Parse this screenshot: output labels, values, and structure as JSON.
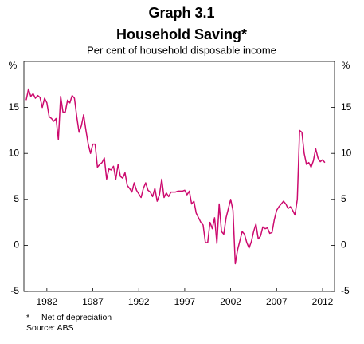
{
  "chart_data": {
    "type": "line",
    "title": "Graph 3.1",
    "subtitle": "Household Saving*",
    "subtitle2": "Per cent of household disposable income",
    "ylabel": "%",
    "y2label": "%",
    "note": "Net of depreciation",
    "note_marker": "*",
    "source": "Source: ABS",
    "x": [
      1979.75,
      1980,
      1980.25,
      1980.5,
      1980.75,
      1981,
      1981.25,
      1981.5,
      1981.75,
      1982,
      1982.25,
      1982.5,
      1982.75,
      1983,
      1983.25,
      1983.5,
      1983.75,
      1984,
      1984.25,
      1984.5,
      1984.75,
      1985,
      1985.25,
      1985.5,
      1985.75,
      1986,
      1986.25,
      1986.5,
      1986.75,
      1987,
      1987.25,
      1987.5,
      1987.75,
      1988,
      1988.25,
      1988.5,
      1988.75,
      1989,
      1989.25,
      1989.5,
      1989.75,
      1990,
      1990.25,
      1990.5,
      1990.75,
      1991,
      1991.25,
      1991.5,
      1991.75,
      1992,
      1992.25,
      1992.5,
      1992.75,
      1993,
      1993.25,
      1993.5,
      1993.75,
      1994,
      1994.25,
      1994.5,
      1994.75,
      1995,
      1995.25,
      1995.5,
      1995.75,
      1996,
      1996.25,
      1996.5,
      1996.75,
      1997,
      1997.25,
      1997.5,
      1997.75,
      1998,
      1998.25,
      1998.5,
      1998.75,
      1999,
      1999.25,
      1999.5,
      1999.75,
      2000,
      2000.25,
      2000.5,
      2000.75,
      2001,
      2001.25,
      2001.5,
      2001.75,
      2002,
      2002.25,
      2002.5,
      2002.75,
      2003,
      2003.25,
      2003.5,
      2003.75,
      2004,
      2004.25,
      2004.5,
      2004.75,
      2005,
      2005.25,
      2005.5,
      2005.75,
      2006,
      2006.25,
      2006.5,
      2006.75,
      2007,
      2007.25,
      2007.5,
      2007.75,
      2008,
      2008.25,
      2008.5,
      2008.75,
      2009,
      2009.25,
      2009.5,
      2009.75,
      2010,
      2010.25,
      2010.5,
      2010.75,
      2011,
      2011.25,
      2011.5,
      2011.75,
      2012,
      2012.25
    ],
    "series": [
      {
        "name": "Household Saving",
        "color": "#cc0a6e",
        "values": [
          15.8,
          17,
          16.2,
          16.5,
          16,
          16.3,
          16.1,
          15,
          16,
          15.5,
          14,
          13.8,
          13.5,
          13.8,
          11.5,
          16.2,
          14.5,
          14.5,
          15.8,
          15.5,
          16.3,
          16,
          14,
          12.3,
          13,
          14.2,
          12.5,
          11,
          10,
          11,
          11,
          8.5,
          8.8,
          9,
          9.5,
          7.2,
          8.3,
          8.2,
          8.6,
          7.2,
          8.8,
          7.5,
          7.3,
          7.9,
          6.5,
          6.2,
          5.8,
          6.8,
          6,
          5.6,
          5.2,
          6.2,
          6.8,
          6,
          5.8,
          5.3,
          6.2,
          4.8,
          5.5,
          7.2,
          5.2,
          5.7,
          5.3,
          5.8,
          5.8,
          5.8,
          5.9,
          5.9,
          5.9,
          6,
          5.5,
          5.9,
          4.5,
          4.8,
          3.5,
          3,
          2.5,
          2.2,
          0.3,
          0.3,
          2.5,
          1.8,
          3,
          0.2,
          4.5,
          1.5,
          1.2,
          3,
          4,
          5,
          3.8,
          -2,
          -0.5,
          0.5,
          1.5,
          1.2,
          0.3,
          -0.3,
          0.4,
          1.5,
          2.3,
          0.7,
          1,
          2,
          1.8,
          1.9,
          1.3,
          1.4,
          2.8,
          3.8,
          4.2,
          4.5,
          4.8,
          4.5,
          4,
          4.2,
          3.8,
          3.3,
          5,
          12.5,
          12.3,
          10,
          8.8,
          9,
          8.5,
          9.2,
          10.5,
          9.5,
          9.1,
          9.3,
          9
        ]
      }
    ],
    "xlim": [
      1979.5,
      2013.3
    ],
    "xticks": [
      1982,
      1987,
      1992,
      1997,
      2002,
      2007,
      2012
    ],
    "ylim": [
      -5,
      20
    ],
    "yticks": [
      -5,
      0,
      5,
      10,
      15
    ],
    "y2lim": [
      -5,
      20
    ],
    "y2ticks": [
      -5,
      0,
      5,
      10,
      15
    ],
    "grid": false
  }
}
